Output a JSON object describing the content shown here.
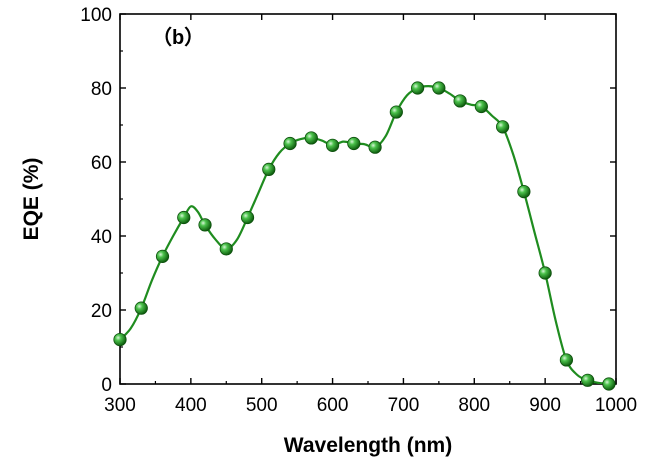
{
  "chart_data": {
    "type": "line",
    "panel_label": "（b）",
    "xlabel": "Wavelength (nm)",
    "ylabel": "EQE (%)",
    "xlim": [
      300,
      1000
    ],
    "ylim": [
      0,
      100
    ],
    "x_ticks": [
      300,
      400,
      500,
      600,
      700,
      800,
      900,
      1000
    ],
    "y_ticks": [
      0,
      20,
      40,
      60,
      80,
      100
    ],
    "x_tick_labels": [
      "300",
      "400",
      "500",
      "600",
      "700",
      "800",
      "900",
      "1000"
    ],
    "y_tick_labels": [
      "0",
      "20",
      "40",
      "60",
      "80",
      "100"
    ],
    "grid": false,
    "line_color": "#1f8c1f",
    "marker_color": "#2fa52f",
    "series": [
      {
        "x": [
          300,
          330,
          360,
          390,
          420,
          450,
          480,
          510,
          540,
          570,
          600,
          630,
          660,
          690,
          720,
          750,
          780,
          810,
          840,
          870,
          900,
          930,
          960,
          990
        ],
        "y": [
          12,
          20.5,
          34.5,
          45,
          43,
          36.5,
          45,
          58,
          65,
          66.5,
          64.5,
          65,
          64,
          73.5,
          80,
          80,
          76.5,
          75,
          69.5,
          52,
          30,
          6.5,
          1,
          0
        ]
      }
    ],
    "curve": {
      "x": [
        300,
        315,
        330,
        345,
        360,
        375,
        390,
        400,
        410,
        420,
        435,
        450,
        465,
        480,
        495,
        510,
        525,
        540,
        555,
        570,
        585,
        600,
        615,
        630,
        645,
        660,
        675,
        690,
        705,
        720,
        735,
        750,
        765,
        780,
        795,
        810,
        825,
        840,
        855,
        870,
        885,
        900,
        915,
        930,
        945,
        960,
        975,
        990
      ],
      "y": [
        12,
        15,
        20.5,
        28,
        34.5,
        40,
        45,
        48,
        46.5,
        43,
        39,
        36.5,
        39,
        45,
        51.5,
        58,
        62.5,
        65,
        66.2,
        66.5,
        65.8,
        64.5,
        65.5,
        65,
        64.8,
        64,
        67,
        73.5,
        78,
        80,
        80.5,
        80,
        78.5,
        76.5,
        75.5,
        75,
        72.5,
        69.5,
        62,
        52,
        41,
        30,
        17,
        6.5,
        2.5,
        1,
        0.3,
        0
      ]
    }
  }
}
